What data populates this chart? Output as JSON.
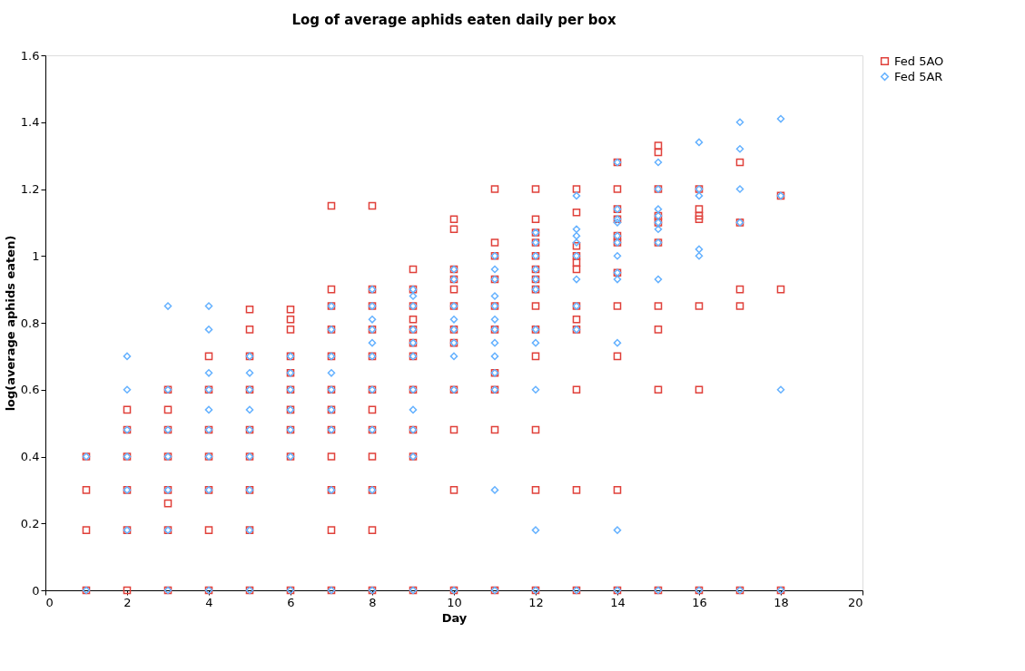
{
  "chart_data": {
    "type": "scatter",
    "title": "Log of average aphids eaten daily per box",
    "xlabel": "Day",
    "ylabel": "log(average aphids eaten)",
    "xlim": [
      0,
      20
    ],
    "xticks": [
      0,
      2,
      4,
      6,
      8,
      10,
      12,
      14,
      16,
      18,
      20
    ],
    "ylim": [
      0,
      1.6
    ],
    "yticks": [
      0,
      0.2,
      0.4,
      0.6,
      0.8,
      1,
      1.2,
      1.4,
      1.6
    ],
    "grid": false,
    "legend": "right",
    "series": [
      {
        "name": "Fed 5AO",
        "color": "#e0403a",
        "marker": "square",
        "x": [
          1,
          1,
          1,
          1,
          2,
          2,
          2,
          2,
          2,
          2,
          3,
          3,
          3,
          3,
          3,
          3,
          3,
          3,
          4,
          4,
          4,
          4,
          4,
          4,
          4,
          5,
          5,
          5,
          5,
          5,
          5,
          5,
          5,
          5,
          6,
          6,
          6,
          6,
          6,
          6,
          6,
          6,
          6,
          6,
          7,
          7,
          7,
          7,
          7,
          7,
          7,
          7,
          7,
          7,
          7,
          7,
          8,
          8,
          8,
          8,
          8,
          8,
          8,
          8,
          8,
          8,
          8,
          8,
          9,
          9,
          9,
          9,
          9,
          9,
          9,
          9,
          9,
          9,
          9,
          10,
          10,
          10,
          10,
          10,
          10,
          10,
          10,
          10,
          10,
          10,
          10,
          11,
          11,
          11,
          11,
          11,
          11,
          11,
          11,
          11,
          11,
          12,
          12,
          12,
          12,
          12,
          12,
          12,
          12,
          12,
          12,
          12,
          12,
          12,
          12,
          13,
          13,
          13,
          13,
          13,
          13,
          13,
          13,
          13,
          13,
          13,
          13,
          14,
          14,
          14,
          14,
          14,
          14,
          14,
          14,
          14,
          14,
          14,
          15,
          15,
          15,
          15,
          15,
          15,
          15,
          15,
          15,
          15,
          16,
          16,
          16,
          16,
          16,
          16,
          16,
          17,
          17,
          17,
          17,
          17,
          18,
          18,
          18
        ],
        "values": [
          0,
          0.18,
          0.3,
          0.4,
          0,
          0.18,
          0.3,
          0.4,
          0.48,
          0.54,
          0,
          0.18,
          0.26,
          0.3,
          0.4,
          0.48,
          0.54,
          0.6,
          0,
          0.18,
          0.3,
          0.4,
          0.48,
          0.6,
          0.7,
          0,
          0.18,
          0.3,
          0.4,
          0.48,
          0.6,
          0.7,
          0.78,
          0.84,
          0,
          0.4,
          0.48,
          0.54,
          0.6,
          0.65,
          0.7,
          0.78,
          0.81,
          0.84,
          0,
          0.18,
          0.3,
          0.4,
          0.48,
          0.54,
          0.6,
          0.7,
          0.78,
          0.85,
          0.9,
          1.15,
          0,
          0.18,
          0.3,
          0.4,
          0.48,
          0.54,
          0.6,
          0.7,
          0.78,
          0.85,
          0.9,
          1.15,
          0,
          0.4,
          0.48,
          0.6,
          0.7,
          0.74,
          0.78,
          0.81,
          0.85,
          0.9,
          0.96,
          0,
          0.3,
          0.48,
          0.6,
          0.74,
          0.78,
          0.85,
          0.9,
          0.93,
          0.96,
          1.08,
          1.11,
          0,
          0.48,
          0.6,
          0.65,
          0.78,
          0.85,
          0.93,
          1.0,
          1.04,
          1.2,
          0,
          0.3,
          0.48,
          0.7,
          0.78,
          0.85,
          0.9,
          0.93,
          0.96,
          1.0,
          1.04,
          1.07,
          1.11,
          1.2,
          0,
          0.3,
          0.6,
          0.78,
          0.81,
          0.85,
          0.96,
          0.98,
          1.0,
          1.03,
          1.13,
          1.2,
          0,
          0.3,
          0.7,
          0.85,
          0.95,
          1.04,
          1.06,
          1.11,
          1.14,
          1.2,
          1.28,
          0,
          0.6,
          0.78,
          0.85,
          1.04,
          1.1,
          1.12,
          1.2,
          1.31,
          1.33,
          0,
          0.6,
          0.85,
          1.11,
          1.12,
          1.14,
          1.2,
          0,
          0.85,
          0.9,
          1.1,
          1.28,
          0,
          0.9,
          1.18
        ]
      },
      {
        "name": "Fed 5AR",
        "color": "#66b2ff",
        "marker": "diamond",
        "x": [
          1,
          1,
          2,
          2,
          2,
          2,
          2,
          2,
          3,
          3,
          3,
          3,
          3,
          3,
          3,
          4,
          4,
          4,
          4,
          4,
          4,
          4,
          4,
          4,
          5,
          5,
          5,
          5,
          5,
          5,
          5,
          5,
          5,
          6,
          6,
          6,
          6,
          6,
          6,
          6,
          7,
          7,
          7,
          7,
          7,
          7,
          7,
          7,
          7,
          8,
          8,
          8,
          8,
          8,
          8,
          8,
          8,
          8,
          8,
          9,
          9,
          9,
          9,
          9,
          9,
          9,
          9,
          9,
          9,
          9,
          10,
          10,
          10,
          10,
          10,
          10,
          10,
          10,
          10,
          11,
          11,
          11,
          11,
          11,
          11,
          11,
          11,
          11,
          11,
          11,
          11,
          11,
          12,
          12,
          12,
          12,
          12,
          12,
          12,
          12,
          12,
          12,
          12,
          13,
          13,
          13,
          13,
          13,
          13,
          13,
          13,
          13,
          14,
          14,
          14,
          14,
          14,
          14,
          14,
          14,
          14,
          14,
          14,
          14,
          15,
          15,
          15,
          15,
          15,
          15,
          15,
          15,
          15,
          16,
          16,
          16,
          16,
          16,
          16,
          17,
          17,
          17,
          17,
          17,
          18,
          18,
          18,
          18
        ],
        "values": [
          0,
          0.4,
          0.18,
          0.3,
          0.4,
          0.48,
          0.6,
          0.7,
          0,
          0.18,
          0.3,
          0.4,
          0.48,
          0.6,
          0.85,
          0,
          0.3,
          0.4,
          0.48,
          0.54,
          0.6,
          0.65,
          0.78,
          0.85,
          0,
          0.18,
          0.3,
          0.4,
          0.48,
          0.54,
          0.6,
          0.65,
          0.7,
          0,
          0.4,
          0.48,
          0.54,
          0.6,
          0.65,
          0.7,
          0,
          0.3,
          0.48,
          0.54,
          0.6,
          0.65,
          0.7,
          0.78,
          0.85,
          0,
          0.3,
          0.48,
          0.6,
          0.7,
          0.74,
          0.78,
          0.81,
          0.85,
          0.9,
          0,
          0.4,
          0.48,
          0.54,
          0.6,
          0.7,
          0.74,
          0.78,
          0.85,
          0.88,
          0.9,
          0,
          0.6,
          0.7,
          0.74,
          0.78,
          0.81,
          0.85,
          0.93,
          0.96,
          0,
          0.3,
          0.6,
          0.65,
          0.7,
          0.74,
          0.78,
          0.81,
          0.85,
          0.88,
          0.93,
          0.96,
          1.0,
          0,
          0.18,
          0.6,
          0.74,
          0.78,
          0.9,
          0.93,
          0.96,
          1.0,
          1.04,
          1.07,
          0,
          0.78,
          0.85,
          0.93,
          1.0,
          1.04,
          1.06,
          1.08,
          1.18,
          0,
          0.18,
          0.74,
          0.93,
          0.95,
          1.0,
          1.04,
          1.06,
          1.1,
          1.11,
          1.14,
          1.28,
          0,
          0.93,
          1.04,
          1.08,
          1.1,
          1.12,
          1.14,
          1.2,
          1.28,
          0,
          1.0,
          1.02,
          1.18,
          1.2,
          1.34,
          0,
          1.1,
          1.2,
          1.32,
          1.4,
          0,
          0.6,
          1.18,
          1.41
        ]
      }
    ]
  }
}
